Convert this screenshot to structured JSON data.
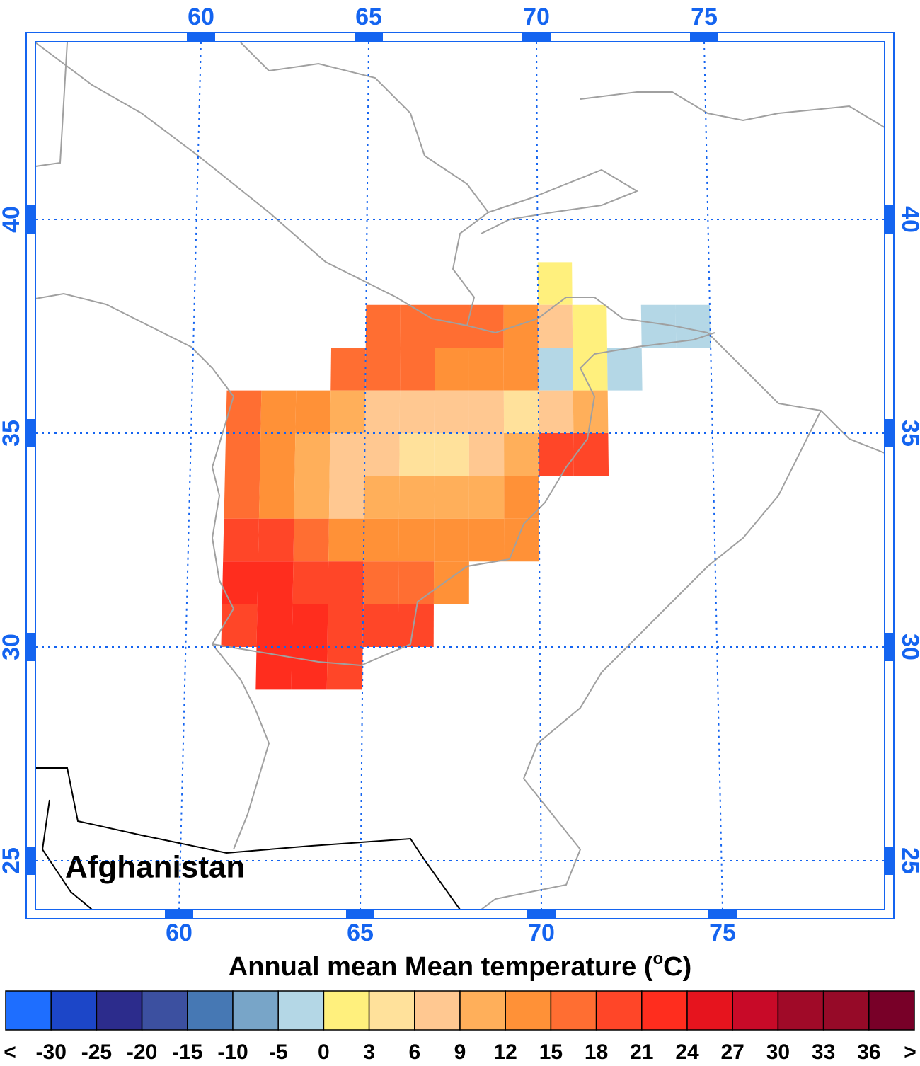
{
  "map": {
    "label": "Afghanistan",
    "title_parts": [
      "Annual mean Mean temperature (",
      "o",
      "C)"
    ],
    "lon_ticks": [
      60,
      65,
      70,
      75
    ],
    "lat_ticks": [
      25,
      30,
      35,
      40
    ],
    "grid_color": "#1464f0",
    "cells": {
      "lon0": 60,
      "step": 1,
      "rows": [
        {
          "lat": 38,
          "values": [
            null,
            null,
            null,
            null,
            null,
            null,
            null,
            null,
            null,
            null,
            2,
            null,
            null,
            null,
            null
          ]
        },
        {
          "lat": 37,
          "values": [
            null,
            null,
            null,
            null,
            null,
            16,
            16,
            16,
            16,
            13,
            6,
            2,
            null,
            -3,
            -3
          ]
        },
        {
          "lat": 36,
          "values": [
            null,
            null,
            null,
            null,
            16,
            16,
            16,
            13,
            13,
            13,
            -3,
            2,
            -3,
            null,
            null
          ]
        },
        {
          "lat": 35,
          "values": [
            null,
            15,
            14,
            14,
            11,
            8,
            6,
            6,
            8,
            3,
            7,
            9,
            null,
            null,
            null
          ]
        },
        {
          "lat": 34,
          "values": [
            null,
            16,
            12,
            9,
            8,
            7,
            5,
            5,
            6,
            10,
            18,
            20,
            null,
            null,
            null
          ]
        },
        {
          "lat": 33,
          "values": [
            null,
            17,
            12,
            10,
            8,
            9,
            9,
            9,
            10,
            12,
            null,
            null,
            null,
            null,
            null
          ]
        },
        {
          "lat": 32,
          "values": [
            null,
            19,
            19,
            17,
            14,
            13,
            13,
            14,
            14,
            14,
            null,
            null,
            null,
            null,
            null
          ]
        },
        {
          "lat": 31,
          "values": [
            null,
            21,
            22,
            19,
            18,
            17,
            16,
            14,
            null,
            null,
            null,
            null,
            null,
            null,
            null
          ]
        },
        {
          "lat": 30,
          "values": [
            null,
            20,
            22,
            22,
            20,
            19,
            19,
            null,
            null,
            null,
            null,
            null,
            null,
            null,
            null
          ]
        },
        {
          "lat": 29,
          "values": [
            null,
            null,
            22,
            21,
            20,
            null,
            null,
            null,
            null,
            null,
            null,
            null,
            null,
            null,
            null
          ]
        }
      ]
    }
  },
  "colorbar": {
    "labels": [
      "<",
      -30,
      -25,
      -20,
      -15,
      -10,
      -5,
      0,
      3,
      6,
      9,
      12,
      15,
      18,
      21,
      24,
      27,
      30,
      33,
      36,
      ">"
    ],
    "colors": [
      "#1e6eff",
      "#1c46c8",
      "#2c2c8c",
      "#3c50a0",
      "#4678b4",
      "#78a5c8",
      "#b4d7e6",
      "#fff07d",
      "#ffe19b",
      "#ffc891",
      "#ffaf5a",
      "#ff9137",
      "#ff6e32",
      "#ff4628",
      "#ff2d1e",
      "#e6141e",
      "#c80a28",
      "#a00a28",
      "#960a28",
      "#780028"
    ]
  }
}
